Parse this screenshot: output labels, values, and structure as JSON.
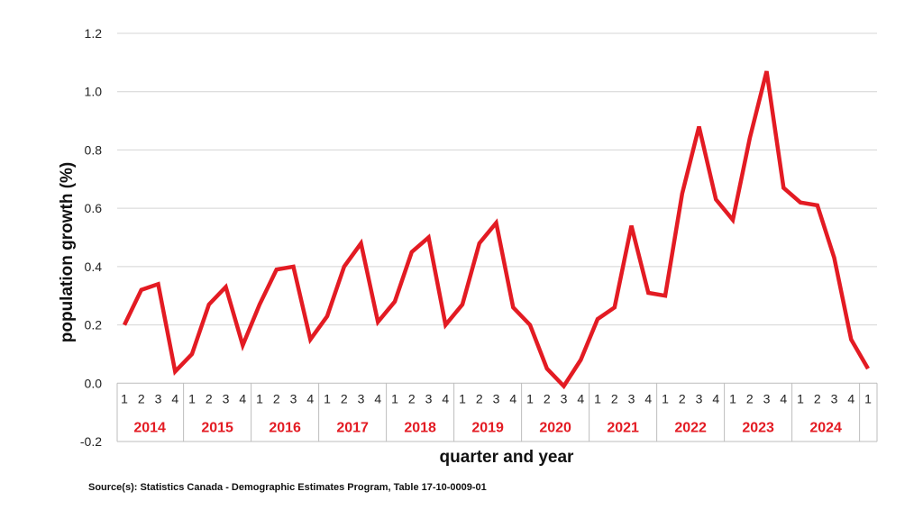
{
  "chart_data": {
    "type": "line",
    "ylabel": "population growth (%)",
    "xlabel": "quarter and year",
    "ylim": [
      -0.2,
      1.2
    ],
    "yticks": [
      "-0.2",
      "0.0",
      "0.2",
      "0.4",
      "0.6",
      "0.8",
      "1.0",
      "1.2"
    ],
    "grid": true,
    "quarter_labels": [
      "1",
      "2",
      "3",
      "4",
      "1",
      "2",
      "3",
      "4",
      "1",
      "2",
      "3",
      "4",
      "1",
      "2",
      "3",
      "4",
      "1",
      "2",
      "3",
      "4",
      "1",
      "2",
      "3",
      "4",
      "1",
      "2",
      "3",
      "4",
      "1",
      "2",
      "3",
      "4",
      "1",
      "2",
      "3",
      "4",
      "1",
      "2",
      "3",
      "4",
      "1",
      "2",
      "3",
      "4",
      "1"
    ],
    "years": [
      "2014",
      "2015",
      "2016",
      "2017",
      "2018",
      "2019",
      "2020",
      "2021",
      "2022",
      "2023",
      "2024"
    ],
    "series": [
      {
        "color": "#e31b23",
        "values": [
          0.2,
          0.32,
          0.34,
          0.04,
          0.1,
          0.27,
          0.33,
          0.13,
          0.27,
          0.39,
          0.4,
          0.15,
          0.23,
          0.4,
          0.48,
          0.21,
          0.28,
          0.45,
          0.5,
          0.2,
          0.27,
          0.48,
          0.55,
          0.26,
          0.2,
          0.05,
          -0.01,
          0.08,
          0.22,
          0.26,
          0.54,
          0.31,
          0.3,
          0.65,
          0.88,
          0.63,
          0.56,
          0.84,
          1.07,
          0.67,
          0.62,
          0.61,
          0.43,
          0.15,
          0.05
        ]
      }
    ]
  },
  "source": "Source(s): Statistics Canada - Demographic Estimates Program, Table 17-10-0009-01"
}
